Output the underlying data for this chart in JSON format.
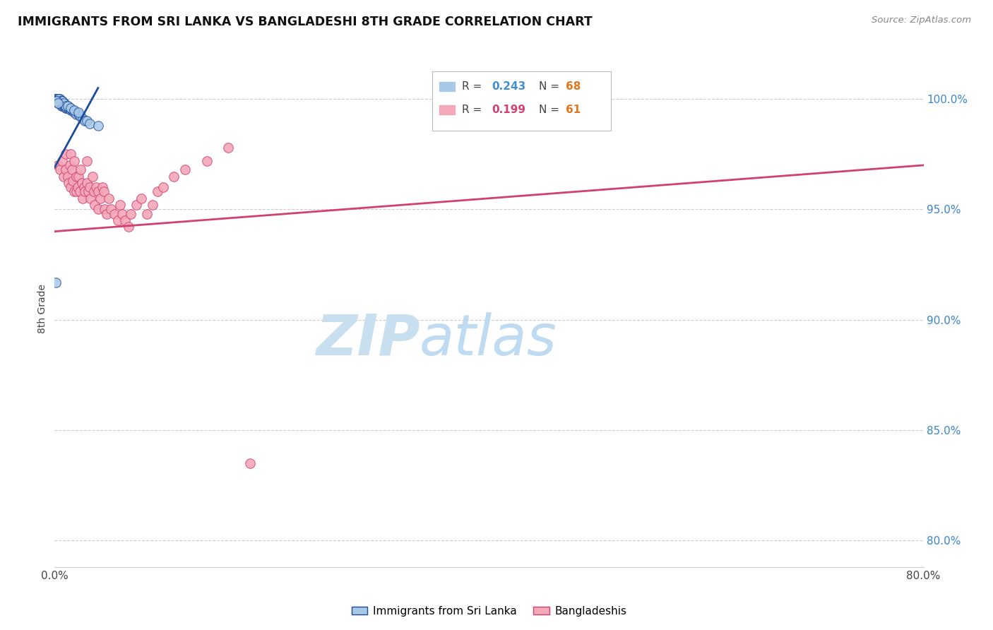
{
  "title": "IMMIGRANTS FROM SRI LANKA VS BANGLADESHI 8TH GRADE CORRELATION CHART",
  "source": "Source: ZipAtlas.com",
  "ylabel": "8th Grade",
  "xlim": [
    0.0,
    0.8
  ],
  "ylim": [
    0.788,
    1.022
  ],
  "xaxis_ticks": [
    0.0,
    0.1,
    0.2,
    0.3,
    0.4,
    0.5,
    0.6,
    0.7,
    0.8
  ],
  "xaxis_tick_labels": [
    "0.0%",
    "",
    "",
    "",
    "",
    "",
    "",
    "",
    "80.0%"
  ],
  "yaxis_ticks": [
    0.8,
    0.85,
    0.9,
    0.95,
    1.0
  ],
  "yaxis_tick_labels": [
    "80.0%",
    "85.0%",
    "90.0%",
    "95.0%",
    "100.0%"
  ],
  "legend_sri_lanka": "Immigrants from Sri Lanka",
  "legend_bangladeshi": "Bangladeshis",
  "color_sri": "#a8c8e8",
  "color_ban": "#f4a8b8",
  "color_sri_line": "#1a4a9a",
  "color_ban_line": "#d04070",
  "color_R_sri": "#4090d0",
  "color_R_ban": "#d04070",
  "color_N": "#e07820",
  "watermark_zip": "ZIP",
  "watermark_atlas": "atlas",
  "watermark_color": "#c8dff0",
  "background_color": "#ffffff",
  "grid_color": "#cccccc",
  "sri_lanka_x": [
    0.001,
    0.001,
    0.001,
    0.002,
    0.002,
    0.002,
    0.002,
    0.003,
    0.003,
    0.003,
    0.003,
    0.003,
    0.004,
    0.004,
    0.004,
    0.004,
    0.005,
    0.005,
    0.005,
    0.005,
    0.006,
    0.006,
    0.006,
    0.007,
    0.007,
    0.007,
    0.008,
    0.008,
    0.009,
    0.009,
    0.01,
    0.01,
    0.011,
    0.011,
    0.012,
    0.012,
    0.013,
    0.014,
    0.015,
    0.016,
    0.017,
    0.018,
    0.019,
    0.02,
    0.022,
    0.024,
    0.026,
    0.028,
    0.03,
    0.032,
    0.001,
    0.002,
    0.003,
    0.004,
    0.005,
    0.006,
    0.007,
    0.008,
    0.01,
    0.012,
    0.015,
    0.018,
    0.022,
    0.001,
    0.002,
    0.003,
    0.04,
    0.001
  ],
  "sri_lanka_y": [
    1.0,
    1.0,
    0.999,
    1.0,
    1.0,
    0.999,
    0.999,
    1.0,
    1.0,
    0.999,
    0.999,
    0.998,
    1.0,
    0.999,
    0.999,
    0.998,
    1.0,
    0.999,
    0.998,
    0.998,
    0.999,
    0.998,
    0.997,
    0.999,
    0.998,
    0.997,
    0.998,
    0.997,
    0.998,
    0.997,
    0.997,
    0.996,
    0.997,
    0.996,
    0.997,
    0.996,
    0.996,
    0.996,
    0.995,
    0.995,
    0.995,
    0.994,
    0.994,
    0.993,
    0.993,
    0.992,
    0.991,
    0.99,
    0.99,
    0.989,
    1.0,
    1.0,
    1.0,
    1.0,
    0.999,
    0.999,
    0.999,
    0.998,
    0.997,
    0.997,
    0.996,
    0.995,
    0.994,
    0.999,
    0.999,
    0.998,
    0.988,
    0.917
  ],
  "bangladeshi_x": [
    0.003,
    0.005,
    0.007,
    0.008,
    0.01,
    0.01,
    0.012,
    0.013,
    0.014,
    0.015,
    0.015,
    0.016,
    0.017,
    0.018,
    0.018,
    0.02,
    0.02,
    0.021,
    0.022,
    0.023,
    0.024,
    0.025,
    0.026,
    0.027,
    0.028,
    0.03,
    0.03,
    0.031,
    0.032,
    0.033,
    0.035,
    0.036,
    0.037,
    0.038,
    0.04,
    0.04,
    0.042,
    0.044,
    0.045,
    0.046,
    0.048,
    0.05,
    0.052,
    0.055,
    0.058,
    0.06,
    0.062,
    0.065,
    0.068,
    0.07,
    0.075,
    0.08,
    0.085,
    0.09,
    0.095,
    0.1,
    0.11,
    0.12,
    0.14,
    0.16,
    0.18
  ],
  "bangladeshi_y": [
    0.97,
    0.968,
    0.972,
    0.965,
    0.975,
    0.968,
    0.965,
    0.962,
    0.97,
    0.975,
    0.96,
    0.968,
    0.963,
    0.958,
    0.972,
    0.965,
    0.958,
    0.96,
    0.965,
    0.958,
    0.968,
    0.962,
    0.955,
    0.96,
    0.958,
    0.972,
    0.962,
    0.958,
    0.96,
    0.955,
    0.965,
    0.958,
    0.952,
    0.96,
    0.958,
    0.95,
    0.955,
    0.96,
    0.958,
    0.95,
    0.948,
    0.955,
    0.95,
    0.948,
    0.945,
    0.952,
    0.948,
    0.945,
    0.942,
    0.948,
    0.952,
    0.955,
    0.948,
    0.952,
    0.958,
    0.96,
    0.965,
    0.968,
    0.972,
    0.978,
    0.835
  ],
  "ban_trendline_x": [
    0.0,
    0.8
  ],
  "ban_trendline_y": [
    0.94,
    0.97
  ],
  "sri_trendline_x0": 0.0,
  "sri_trendline_x1": 0.04,
  "sri_trendline_y0": 0.969,
  "sri_trendline_y1": 1.005
}
